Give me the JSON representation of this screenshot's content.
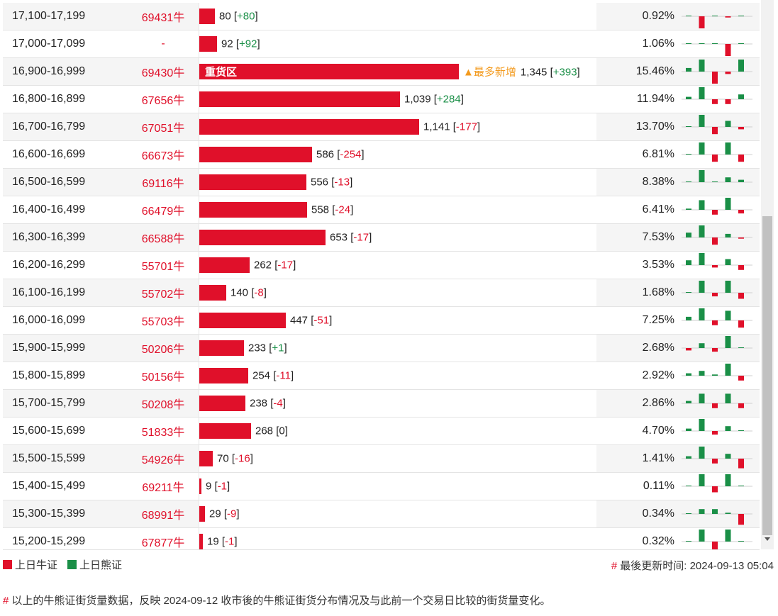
{
  "legend": {
    "bull_label": "上日牛证",
    "bear_label": "上日熊证",
    "bull_color": "#e0102a",
    "bear_color": "#1a8f47"
  },
  "updated": {
    "hash": "#",
    "label": "最後更新时间:",
    "value": "2024-09-13 05:04"
  },
  "note": {
    "hash": "#",
    "text": "以上的牛熊证街货量数据，反映 2024-09-12 收市後的牛熊证街货分布情况及与此前一个交易日比较的街货量变化。"
  },
  "rows": [
    {
      "range": "17,100-17,199",
      "code": "69431牛",
      "qty": 80,
      "qty_text": "80",
      "change": "+80",
      "pct": "0.92%",
      "spark": [
        0,
        -1,
        0,
        -0.1,
        0
      ]
    },
    {
      "range": "17,000-17,099",
      "code": "-",
      "qty": 92,
      "qty_text": "92",
      "change": "+92",
      "pct": "1.06%",
      "spark": [
        0,
        0,
        0,
        -1,
        0
      ]
    },
    {
      "range": "16,900-16,999",
      "code": "69430牛",
      "qty": 1345,
      "qty_text": "1,345",
      "change": "+393",
      "pct": "15.46%",
      "heavy": "重货区",
      "flag": "▲最多新增",
      "spark": [
        0.3,
        1,
        -1,
        -0.2,
        1
      ]
    },
    {
      "range": "16,800-16,899",
      "code": "67656牛",
      "qty": 1039,
      "qty_text": "1,039",
      "change": "+284",
      "pct": "11.94%",
      "spark": [
        0.2,
        1,
        -0.4,
        -0.4,
        0.4
      ]
    },
    {
      "range": "16,700-16,799",
      "code": "67051牛",
      "qty": 1141,
      "qty_text": "1,141",
      "change": "-177",
      "pct": "13.70%",
      "spark": [
        0,
        1,
        -0.6,
        0.5,
        -0.2
      ]
    },
    {
      "range": "16,600-16,699",
      "code": "66673牛",
      "qty": 586,
      "qty_text": "586",
      "change": "-254",
      "pct": "6.81%",
      "spark": [
        0,
        1,
        -0.6,
        1,
        -0.6
      ]
    },
    {
      "range": "16,500-16,599",
      "code": "69116牛",
      "qty": 556,
      "qty_text": "556",
      "change": "-13",
      "pct": "8.38%",
      "spark": [
        0,
        1,
        0,
        0.4,
        0.2
      ]
    },
    {
      "range": "16,400-16,499",
      "code": "66479牛",
      "qty": 558,
      "qty_text": "558",
      "change": "-24",
      "pct": "6.41%",
      "spark": [
        0.1,
        0.8,
        -0.4,
        1,
        -0.3
      ]
    },
    {
      "range": "16,300-16,399",
      "code": "66588牛",
      "qty": 653,
      "qty_text": "653",
      "change": "-17",
      "pct": "7.53%",
      "spark": [
        0.4,
        1,
        -0.6,
        0.3,
        -0.1
      ]
    },
    {
      "range": "16,200-16,299",
      "code": "55701牛",
      "qty": 262,
      "qty_text": "262",
      "change": "-17",
      "pct": "3.53%",
      "spark": [
        0.4,
        1,
        -0.2,
        0.5,
        -0.4
      ]
    },
    {
      "range": "16,100-16,199",
      "code": "55702牛",
      "qty": 140,
      "qty_text": "140",
      "change": "-8",
      "pct": "1.68%",
      "spark": [
        0,
        1,
        -0.3,
        1,
        -0.5
      ]
    },
    {
      "range": "16,000-16,099",
      "code": "55703牛",
      "qty": 447,
      "qty_text": "447",
      "change": "-51",
      "pct": "7.25%",
      "spark": [
        0.3,
        1,
        -0.4,
        0.8,
        -0.6
      ]
    },
    {
      "range": "15,900-15,999",
      "code": "50206牛",
      "qty": 233,
      "qty_text": "233",
      "change": "+1",
      "pct": "2.68%",
      "spark": [
        -0.2,
        0.4,
        -0.3,
        1,
        0
      ]
    },
    {
      "range": "15,800-15,899",
      "code": "50156牛",
      "qty": 254,
      "qty_text": "254",
      "change": "-11",
      "pct": "2.92%",
      "spark": [
        0.2,
        0.4,
        0.1,
        1,
        -0.4
      ]
    },
    {
      "range": "15,700-15,799",
      "code": "50208牛",
      "qty": 238,
      "qty_text": "238",
      "change": "-4",
      "pct": "2.86%",
      "spark": [
        0.2,
        0.8,
        -0.4,
        0.8,
        -0.4
      ]
    },
    {
      "range": "15,600-15,699",
      "code": "51833牛",
      "qty": 268,
      "qty_text": "268",
      "change": "0",
      "pct": "4.70%",
      "spark": [
        0.2,
        1,
        -0.3,
        0.4,
        0
      ]
    },
    {
      "range": "15,500-15,599",
      "code": "54926牛",
      "qty": 70,
      "qty_text": "70",
      "change": "-16",
      "pct": "1.41%",
      "spark": [
        0.2,
        1,
        -0.4,
        0.4,
        -0.8
      ]
    },
    {
      "range": "15,400-15,499",
      "code": "69211牛",
      "qty": 9,
      "qty_text": "9",
      "change": "-1",
      "pct": "0.11%",
      "spark": [
        0,
        1,
        -0.5,
        1,
        0
      ]
    },
    {
      "range": "15,300-15,399",
      "code": "68991牛",
      "qty": 29,
      "qty_text": "29",
      "change": "-9",
      "pct": "0.34%",
      "spark": [
        0,
        0.4,
        0.4,
        0.1,
        -0.9
      ]
    },
    {
      "range": "15,200-15,299",
      "code": "67877牛",
      "qty": 19,
      "qty_text": "19",
      "change": "-1",
      "pct": "0.32%",
      "spark": [
        0,
        1,
        -1,
        1,
        0
      ]
    }
  ]
}
